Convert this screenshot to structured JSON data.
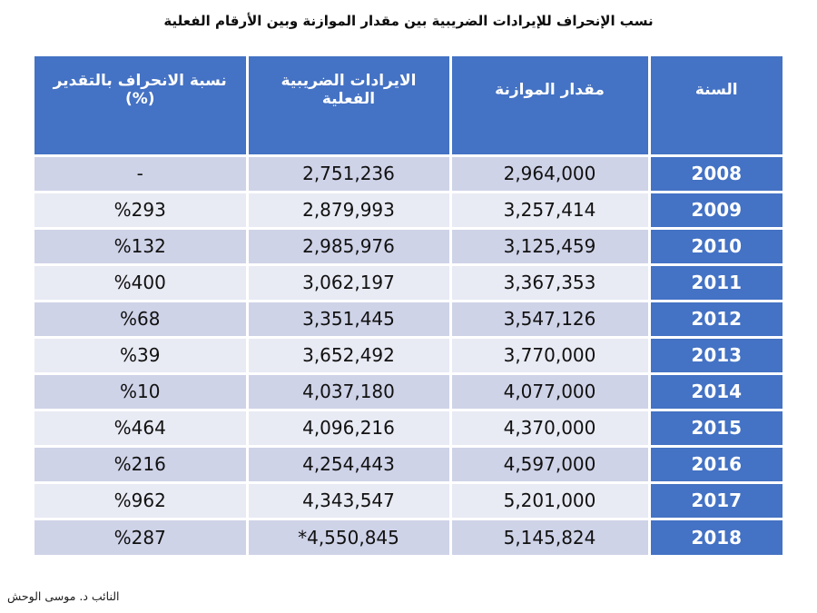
{
  "title": "نسب الإنحراف للإيرادات الضريبية بين مقدار الموازنة وبين الأرقام الفعلية",
  "credit": "النائب د. موسى الوحش",
  "colors": {
    "accent": "#4472C4",
    "stripe-dark": "#CFD3E8",
    "stripe-light": "#E8EAF4",
    "border-white": "#FFFFFF"
  },
  "table": {
    "columns": [
      {
        "key": "year",
        "label": "السنة"
      },
      {
        "key": "budget",
        "label": "مقدار الموازنة"
      },
      {
        "key": "actual",
        "label": "الايرادات الضريبية الفعلية"
      },
      {
        "key": "deviation",
        "label": "نسبة الانحراف بالتقدير (%)"
      }
    ],
    "rows": [
      {
        "year": "2008",
        "budget": "2,964,000",
        "actual": "2,751,236",
        "deviation": "-"
      },
      {
        "year": "2009",
        "budget": "3,257,414",
        "actual": "2,879,993",
        "deviation": "%293"
      },
      {
        "year": "2010",
        "budget": "3,125,459",
        "actual": "2,985,976",
        "deviation": "%132"
      },
      {
        "year": "2011",
        "budget": "3,367,353",
        "actual": "3,062,197",
        "deviation": "%400"
      },
      {
        "year": "2012",
        "budget": "3,547,126",
        "actual": "3,351,445",
        "deviation": "%68"
      },
      {
        "year": "2013",
        "budget": "3,770,000",
        "actual": "3,652,492",
        "deviation": "%39"
      },
      {
        "year": "2014",
        "budget": "4,077,000",
        "actual": "4,037,180",
        "deviation": "%10"
      },
      {
        "year": "2015",
        "budget": "4,370,000",
        "actual": "4,096,216",
        "deviation": "%464"
      },
      {
        "year": "2016",
        "budget": "4,597,000",
        "actual": "4,254,443",
        "deviation": "%216"
      },
      {
        "year": "2017",
        "budget": "5,201,000",
        "actual": "4,343,547",
        "deviation": "%962"
      },
      {
        "year": "2018",
        "budget": "5,145,824",
        "actual": "*4,550,845",
        "deviation": "%287"
      }
    ]
  },
  "chart_data": {
    "type": "table",
    "title": "نسب الإنحراف للإيرادات الضريبية بين مقدار الموازنة وبين الأرقام الفعلية",
    "columns_rtl_order": [
      "السنة",
      "مقدار الموازنة",
      "الايرادات الضريبية الفعلية",
      "نسبة الانحراف بالتقدير (%)"
    ],
    "rows": [
      [
        "2008",
        "2,964,000",
        "2,751,236",
        "-"
      ],
      [
        "2009",
        "3,257,414",
        "2,879,993",
        "%293"
      ],
      [
        "2010",
        "3,125,459",
        "2,985,976",
        "%132"
      ],
      [
        "2011",
        "3,367,353",
        "3,062,197",
        "%400"
      ],
      [
        "2012",
        "3,547,126",
        "3,351,445",
        "%68"
      ],
      [
        "2013",
        "3,770,000",
        "3,652,492",
        "%39"
      ],
      [
        "2014",
        "4,077,000",
        "4,037,180",
        "%10"
      ],
      [
        "2015",
        "4,370,000",
        "4,096,216",
        "%464"
      ],
      [
        "2016",
        "4,597,000",
        "4,254,443",
        "%216"
      ],
      [
        "2017",
        "5,201,000",
        "4,343,547",
        "%962"
      ],
      [
        "2018",
        "5,145,824",
        "*4,550,845",
        "%287"
      ]
    ],
    "notes": "2018 actual value carries a leading asterisk; 2008 deviation shown as a dash"
  }
}
